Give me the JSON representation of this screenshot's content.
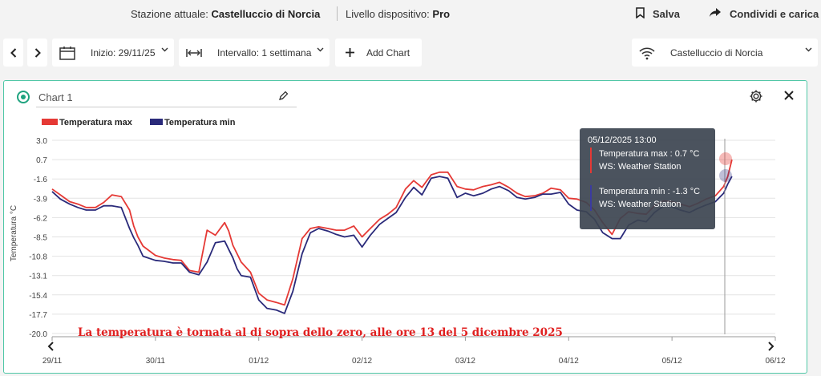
{
  "header": {
    "station_label": "Stazione attuale:",
    "station_value": "Castelluccio di Norcia",
    "level_label": "Livello dispositivo:",
    "level_value": "Pro",
    "save_label": "Salva",
    "share_label": "Condividi e carica"
  },
  "toolbar": {
    "date_label": "Inizio: 29/11/25",
    "interval_label": "Intervallo: 1 settimana",
    "add_chart_label": "Add Chart",
    "station_select": "Castelluccio di Norcia"
  },
  "panel": {
    "chart_name": "Chart 1"
  },
  "tooltip": {
    "title": "05/12/2025 13:00",
    "max_line": "Temperatura max : 0.7 °C",
    "max_source": "WS: Weather Station",
    "min_line": "Temperatura min : -1.3 °C",
    "min_source": "WS: Weather Station"
  },
  "colors": {
    "accent": "#1fa37f",
    "max": "#e53935",
    "min": "#2a2a7a"
  },
  "chart_data": {
    "type": "line",
    "title": "",
    "xlabel": "",
    "ylabel": "Temperatura °C",
    "ylim": [
      -20.0,
      3.0
    ],
    "yticks": [
      "3.0",
      "0.7",
      "-1.6",
      "-3.9",
      "-6.2",
      "-8.5",
      "-10.8",
      "-13.1",
      "-15.4",
      "-17.7",
      "-20.0"
    ],
    "xticks": [
      "29/11",
      "30/11",
      "01/12",
      "02/12",
      "03/12",
      "04/12",
      "05/12",
      "06/12"
    ],
    "xlim": [
      0,
      7
    ],
    "grid": true,
    "legend": "top-left",
    "annotation": "La temperatura è tornata al di sopra dello zero, alle ore 13 del 5 dicembre 2025",
    "series": [
      {
        "name": "Temperatura max",
        "color": "#e53935",
        "x": [
          0,
          0.08,
          0.17,
          0.25,
          0.33,
          0.42,
          0.5,
          0.58,
          0.67,
          0.75,
          0.79,
          0.83,
          0.88,
          1.0,
          1.08,
          1.17,
          1.25,
          1.33,
          1.42,
          1.5,
          1.58,
          1.67,
          1.71,
          1.75,
          1.79,
          1.83,
          1.92,
          2.0,
          2.08,
          2.17,
          2.25,
          2.33,
          2.42,
          2.5,
          2.58,
          2.67,
          2.75,
          2.83,
          2.92,
          3.0,
          3.08,
          3.17,
          3.25,
          3.33,
          3.42,
          3.5,
          3.58,
          3.67,
          3.75,
          3.83,
          3.92,
          4.0,
          4.08,
          4.17,
          4.25,
          4.33,
          4.42,
          4.5,
          4.58,
          4.67,
          4.75,
          4.83,
          4.92,
          5.0,
          5.08,
          5.17,
          5.25,
          5.33,
          5.42,
          5.5,
          5.58,
          5.67,
          5.75,
          5.83,
          5.92,
          6.0,
          6.08,
          6.17,
          6.25,
          6.33,
          6.42,
          6.5,
          6.54,
          6.58
        ],
        "values": [
          -2.8,
          -3.5,
          -4.3,
          -4.6,
          -5.0,
          -5.0,
          -4.4,
          -3.5,
          -3.7,
          -5.3,
          -7.2,
          -8.5,
          -9.6,
          -10.7,
          -11.0,
          -11.2,
          -11.3,
          -12.5,
          -12.7,
          -7.7,
          -8.3,
          -6.8,
          -7.8,
          -9.5,
          -10.5,
          -11.5,
          -12.7,
          -15.2,
          -16.0,
          -16.3,
          -16.6,
          -13.5,
          -8.7,
          -7.5,
          -7.3,
          -7.5,
          -7.7,
          -7.7,
          -7.2,
          -8.5,
          -7.5,
          -6.4,
          -5.8,
          -5.0,
          -2.8,
          -1.8,
          -2.6,
          -1.1,
          -0.8,
          -0.8,
          -2.5,
          -2.8,
          -2.9,
          -2.5,
          -2.3,
          -2.0,
          -2.6,
          -3.3,
          -3.7,
          -3.6,
          -3.3,
          -2.7,
          -2.9,
          -3.9,
          -4.0,
          -4.4,
          -5.3,
          -6.8,
          -8.2,
          -6.3,
          -5.5,
          -5.7,
          -5.8,
          -4.8,
          -4.2,
          -4.3,
          -4.6,
          -4.9,
          -4.5,
          -4.0,
          -3.6,
          -2.5,
          -1.3,
          0.7
        ]
      },
      {
        "name": "Temperatura min",
        "color": "#2a2a7a",
        "x": [
          0,
          0.08,
          0.17,
          0.25,
          0.33,
          0.42,
          0.5,
          0.58,
          0.67,
          0.75,
          0.79,
          0.83,
          0.88,
          1.0,
          1.08,
          1.17,
          1.25,
          1.33,
          1.42,
          1.5,
          1.58,
          1.67,
          1.71,
          1.75,
          1.79,
          1.83,
          1.92,
          2.0,
          2.08,
          2.17,
          2.25,
          2.33,
          2.42,
          2.5,
          2.58,
          2.67,
          2.75,
          2.83,
          2.92,
          3.0,
          3.08,
          3.17,
          3.25,
          3.33,
          3.42,
          3.5,
          3.58,
          3.67,
          3.75,
          3.83,
          3.92,
          4.0,
          4.08,
          4.17,
          4.25,
          4.33,
          4.42,
          4.5,
          4.58,
          4.67,
          4.75,
          4.83,
          4.92,
          5.0,
          5.08,
          5.17,
          5.25,
          5.33,
          5.42,
          5.5,
          5.58,
          5.67,
          5.75,
          5.83,
          5.92,
          6.0,
          6.08,
          6.17,
          6.25,
          6.33,
          6.42,
          6.5,
          6.54,
          6.58
        ],
        "values": [
          -3.1,
          -4.0,
          -4.6,
          -5.0,
          -5.3,
          -5.3,
          -4.8,
          -4.8,
          -5.0,
          -7.5,
          -8.6,
          -9.5,
          -10.8,
          -11.3,
          -11.4,
          -11.6,
          -11.6,
          -12.7,
          -13.0,
          -11.5,
          -9.2,
          -9.0,
          -10.0,
          -11.0,
          -12.3,
          -13.1,
          -13.3,
          -16.0,
          -17.0,
          -17.2,
          -17.6,
          -15.0,
          -10.5,
          -8.0,
          -7.5,
          -7.8,
          -8.2,
          -8.5,
          -8.3,
          -9.7,
          -8.3,
          -7.0,
          -6.3,
          -5.6,
          -3.8,
          -2.6,
          -3.5,
          -1.5,
          -1.3,
          -1.5,
          -3.8,
          -3.3,
          -3.6,
          -3.3,
          -2.8,
          -2.5,
          -3.0,
          -3.8,
          -4.0,
          -3.8,
          -3.4,
          -3.4,
          -3.2,
          -4.6,
          -5.3,
          -5.5,
          -6.4,
          -8.0,
          -8.7,
          -8.7,
          -7.1,
          -6.5,
          -6.7,
          -5.6,
          -4.8,
          -4.9,
          -5.3,
          -5.6,
          -5.1,
          -4.7,
          -4.3,
          -3.3,
          -2.2,
          -1.3
        ]
      }
    ]
  }
}
